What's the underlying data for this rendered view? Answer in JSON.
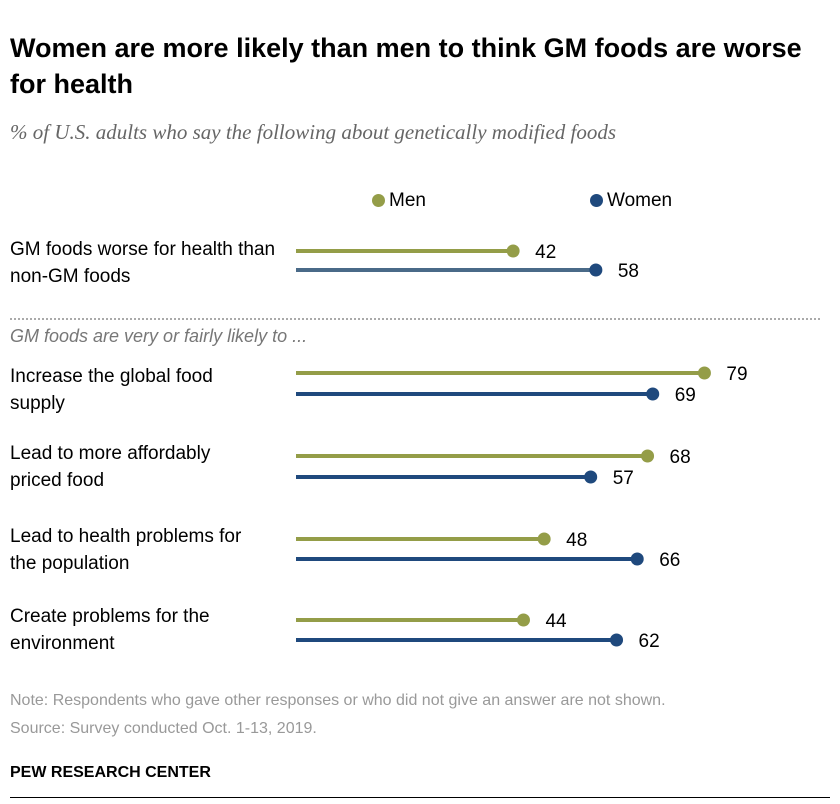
{
  "title": "Women are more likely than men to think GM foods are worse for health",
  "subtitle": "% of U.S. adults who say the following about genetically modified foods",
  "section_label": "GM foods are very or fairly likely to ...",
  "note": "Note: Respondents who gave other responses or who did not give an answer are not shown.",
  "source": "Source: Survey conducted Oct. 1-13, 2019.",
  "brand": "PEW RESEARCH CENTER",
  "chart_data": {
    "type": "dot-line",
    "categories": [
      "GM foods worse for health than non-GM foods",
      "Increase the global food supply",
      "Lead to more affordably priced food",
      "Lead to health problems for the population",
      "Create problems for the environment"
    ],
    "series": [
      {
        "name": "Men",
        "color": "#949d48",
        "values": [
          42,
          79,
          68,
          48,
          44
        ]
      },
      {
        "name": "Women",
        "color": "#1f497d",
        "values": [
          58,
          69,
          57,
          66,
          62
        ]
      }
    ],
    "legend": "top"
  }
}
